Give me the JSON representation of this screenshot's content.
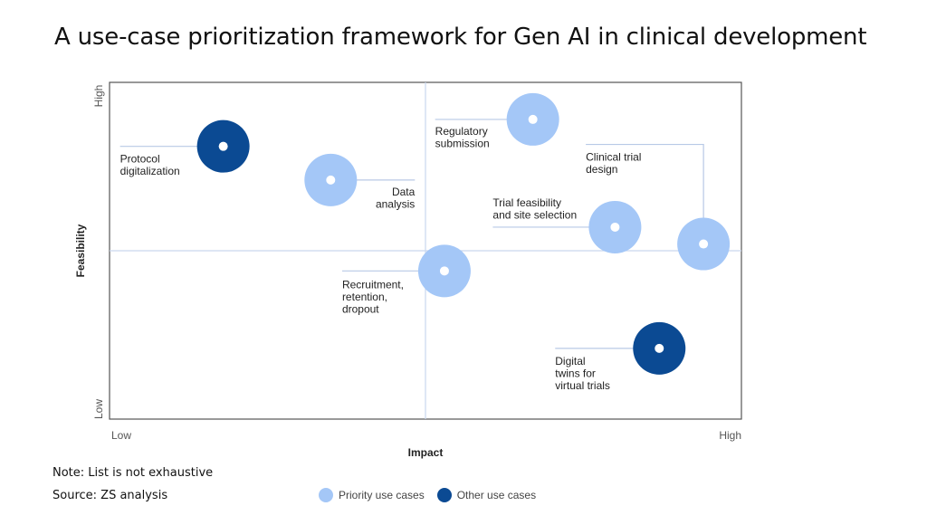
{
  "title": "A use-case prioritization framework for Gen AI in clinical development",
  "colors": {
    "priority": "#a4c7f7",
    "other": "#0b4a93",
    "frame": "#555555",
    "quadrant": "#c9d7ee",
    "leader": "#b8c9e6"
  },
  "notes": {
    "note": "Note: List is not exhaustive",
    "source": "Source: ZS analysis"
  },
  "legend": [
    {
      "label": "Priority use cases",
      "kind": "priority"
    },
    {
      "label": "Other use cases",
      "kind": "other"
    }
  ],
  "chart_data": {
    "type": "scatter",
    "xlabel": "Impact",
    "ylabel": "Feasibility",
    "xticks": [
      "Low",
      "High"
    ],
    "yticks": [
      "Low",
      "High"
    ],
    "xlim": [
      0,
      100
    ],
    "ylim": [
      0,
      100
    ],
    "points": [
      {
        "label": [
          "Protocol",
          "digitalization"
        ],
        "x": 18,
        "y": 81,
        "kind": "other"
      },
      {
        "label": [
          "Data",
          "analysis"
        ],
        "x": 35,
        "y": 71,
        "kind": "priority"
      },
      {
        "label": [
          "Regulatory",
          "submission"
        ],
        "x": 67,
        "y": 89,
        "kind": "priority"
      },
      {
        "label": [
          "Clinical trial",
          "design"
        ],
        "x": 94,
        "y": 52,
        "kind": "priority"
      },
      {
        "label": [
          "Trial feasibility",
          "and site selection"
        ],
        "x": 80,
        "y": 57,
        "kind": "priority"
      },
      {
        "label": [
          "Recruitment,",
          "retention,",
          "dropout"
        ],
        "x": 53,
        "y": 44,
        "kind": "priority"
      },
      {
        "label": [
          "Digital",
          "twins for",
          "virtual trials"
        ],
        "x": 87,
        "y": 21,
        "kind": "other"
      }
    ]
  }
}
